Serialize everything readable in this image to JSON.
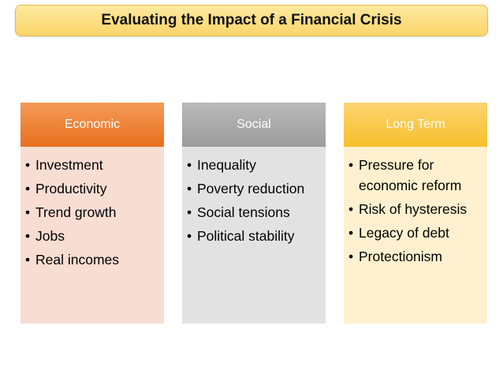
{
  "title": "Evaluating the Impact of a Financial Crisis",
  "columns": [
    {
      "header": "Economic",
      "color": "#ED7D31",
      "items": [
        "Investment",
        "Productivity",
        "Trend growth",
        "Jobs",
        "Real incomes"
      ]
    },
    {
      "header": "Social",
      "color": "#A5A5A5",
      "items": [
        "Inequality",
        "Poverty reduction",
        "Social tensions",
        "Political stability"
      ]
    },
    {
      "header": "Long Term",
      "color": "#FFC000",
      "items": [
        "Pressure for economic reform",
        "Risk of hysteresis",
        "Legacy of debt",
        "Protectionism"
      ]
    }
  ],
  "bullet": "•"
}
